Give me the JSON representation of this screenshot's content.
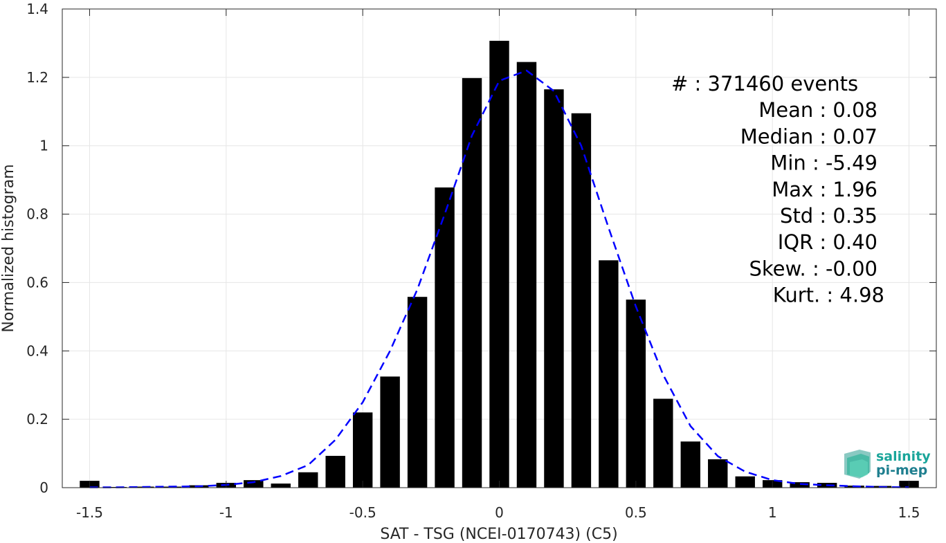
{
  "chart_data": {
    "type": "bar",
    "xlabel": "SAT - TSG (NCEI-0170743) (C5)",
    "ylabel": "Normalized histogram",
    "xlim": [
      -1.6,
      1.6
    ],
    "ylim": [
      0,
      1.4
    ],
    "xticks": [
      "-1.5",
      "-1",
      "-0.5",
      "0",
      "0.5",
      "1",
      "1.5"
    ],
    "xtick_values": [
      -1.5,
      -1,
      -0.5,
      0,
      0.5,
      1,
      1.5
    ],
    "yticks": [
      "0",
      "0.2",
      "0.4",
      "0.6",
      "0.8",
      "1",
      "1.2",
      "1.4"
    ],
    "ytick_values": [
      0,
      0.2,
      0.4,
      0.6,
      0.8,
      1,
      1.2,
      1.4
    ],
    "grid": true,
    "bar_color": "#000000",
    "fit_color": "#0000ff",
    "bins": [
      -1.5,
      -1.4,
      -1.3,
      -1.2,
      -1.1,
      -1.0,
      -0.9,
      -0.8,
      -0.7,
      -0.6,
      -0.5,
      -0.4,
      -0.3,
      -0.2,
      -0.1,
      0.0,
      0.1,
      0.2,
      0.3,
      0.4,
      0.5,
      0.6,
      0.7,
      0.8,
      0.9,
      1.0,
      1.1,
      1.2,
      1.3,
      1.4,
      1.5
    ],
    "values": [
      0.02,
      0.002,
      0.003,
      0.003,
      0.007,
      0.014,
      0.022,
      0.012,
      0.045,
      0.093,
      0.22,
      0.325,
      0.558,
      0.878,
      1.198,
      1.307,
      1.245,
      1.165,
      1.095,
      0.665,
      0.55,
      0.26,
      0.135,
      0.083,
      0.033,
      0.022,
      0.016,
      0.014,
      0.006,
      0.005,
      0.02
    ],
    "fit_curve": {
      "style": "dashed",
      "x": [
        -1.5,
        -1.4,
        -1.3,
        -1.2,
        -1.1,
        -1.0,
        -0.9,
        -0.8,
        -0.7,
        -0.6,
        -0.5,
        -0.4,
        -0.3,
        -0.2,
        -0.1,
        0.0,
        0.1,
        0.2,
        0.3,
        0.4,
        0.5,
        0.6,
        0.7,
        0.8,
        0.9,
        1.0,
        1.1,
        1.2,
        1.3,
        1.4,
        1.5
      ],
      "y": [
        0.001,
        0.001,
        0.002,
        0.003,
        0.004,
        0.008,
        0.016,
        0.034,
        0.066,
        0.14,
        0.25,
        0.4,
        0.58,
        0.8,
        1.03,
        1.19,
        1.22,
        1.16,
        1.0,
        0.76,
        0.53,
        0.33,
        0.18,
        0.092,
        0.047,
        0.022,
        0.011,
        0.007,
        0.004,
        0.002,
        0.001
      ]
    }
  },
  "stats": [
    {
      "label": "#  : 371460 events",
      "anchor": "start"
    },
    {
      "label": "Mean : 0.08",
      "anchor": "end"
    },
    {
      "label": "Median : 0.07",
      "anchor": "end"
    },
    {
      "label": "Min : -5.49",
      "anchor": "end"
    },
    {
      "label": "Max : 1.96",
      "anchor": "end"
    },
    {
      "label": "Std : 0.35",
      "anchor": "end"
    },
    {
      "label": "IQR : 0.40",
      "anchor": "end"
    },
    {
      "label": "Skew. : -0.00",
      "anchor": "end"
    },
    {
      "label": "Kurt. : 4.98",
      "anchor": "end"
    }
  ],
  "logo": {
    "line1": "salinity",
    "line2": "pi-mep",
    "color_line1": "#1aa59a",
    "color_line2": "#1f7f8f"
  }
}
